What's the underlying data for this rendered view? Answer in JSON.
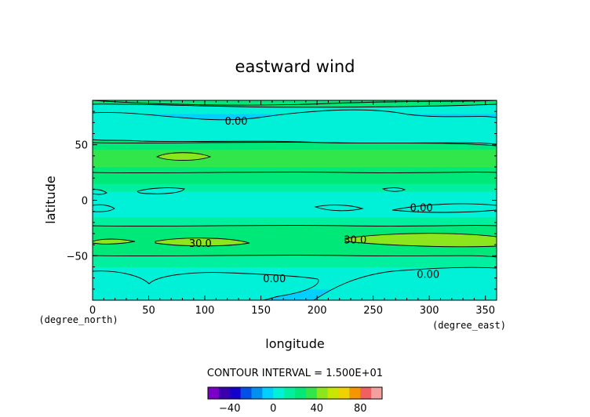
{
  "chart_data": {
    "type": "heatmap",
    "title": "eastward wind",
    "xlabel": "longitude",
    "ylabel": "latitude",
    "x_unit": "(degree_east)",
    "y_unit": "(degree_north)",
    "xlim": [
      0,
      360
    ],
    "ylim": [
      -90,
      90
    ],
    "x_ticks": [
      0,
      50,
      100,
      150,
      200,
      250,
      300,
      350
    ],
    "y_ticks": [
      -50,
      0,
      50
    ],
    "x_tick_labels": [
      "0",
      "50",
      "100",
      "150",
      "200",
      "250",
      "300",
      "350"
    ],
    "y_tick_labels": [
      "−50",
      "0",
      "50"
    ],
    "contour_interval_label": "CONTOUR INTERVAL = 1.500E+01",
    "contour_interval": 15,
    "contour_labels": [
      {
        "text": "0.00",
        "lon": 128,
        "lat": 71
      },
      {
        "text": "0.00",
        "lon": 293,
        "lat": -7
      },
      {
        "text": "30.0",
        "lon": 96,
        "lat": -39
      },
      {
        "text": "30.0",
        "lon": 234,
        "lat": -36
      },
      {
        "text": "0.00",
        "lon": 162,
        "lat": -71
      },
      {
        "text": "0.00",
        "lon": 299,
        "lat": -67
      }
    ],
    "lat_profile": {
      "lat": [
        -90,
        -80,
        -70,
        -60,
        -50,
        -42,
        -36,
        -30,
        -22,
        -15,
        -8,
        0,
        8,
        15,
        22,
        30,
        38,
        46,
        54,
        62,
        70,
        78,
        85,
        90
      ],
      "u": [
        -5,
        -2,
        2,
        10,
        18,
        26,
        32,
        26,
        16,
        8,
        4,
        4,
        8,
        16,
        24,
        30,
        33,
        28,
        16,
        6,
        0,
        -2,
        2,
        5
      ]
    },
    "colorbar": {
      "tick_labels": [
        "−40",
        "0",
        "40",
        "80"
      ],
      "tick_values": [
        -40,
        0,
        40,
        80
      ],
      "min": -60,
      "interval": 10,
      "colors": [
        "#7a00c8",
        "#3a00b0",
        "#1400cc",
        "#0050e6",
        "#0090f0",
        "#00cfff",
        "#00f0d8",
        "#00f0a0",
        "#00e878",
        "#30e64a",
        "#8ce61e",
        "#c8e600",
        "#f0d200",
        "#f59600",
        "#f06060",
        "#f5a0a0"
      ]
    }
  }
}
